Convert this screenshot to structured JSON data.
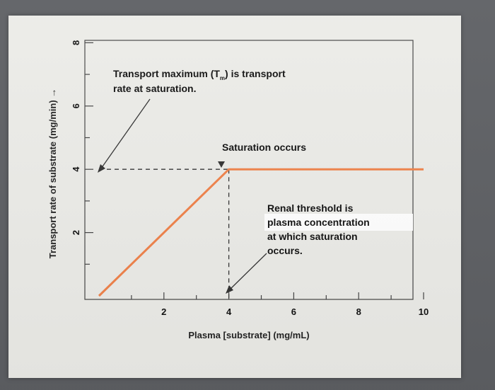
{
  "chart_data": {
    "type": "line",
    "title": "",
    "xlabel": "Plasma [substrate] (mg/mL)",
    "ylabel": "Transport rate of substrate (mg/min) →",
    "xlim": [
      0,
      10
    ],
    "ylim": [
      0,
      8
    ],
    "x_ticks": [
      "2",
      "4",
      "6",
      "8",
      "10"
    ],
    "y_ticks": [
      "2",
      "4",
      "6",
      "8"
    ],
    "series": [
      {
        "x": [
          0,
          4,
          10
        ],
        "y": [
          0,
          4,
          4
        ],
        "color": "#f0824a"
      }
    ],
    "reference_lines": {
      "y": 4,
      "x": 4,
      "style": "dashed"
    },
    "grid": false,
    "annotations": {
      "transport_max_line1_a": "Transport maximum (T",
      "transport_max_sub": "m",
      "transport_max_line1_b": ") is transport",
      "transport_max_line2": "rate at saturation.",
      "saturation": "Saturation occurs",
      "renal_threshold": [
        "Renal threshold is",
        "plasma concentration",
        "at which saturation",
        "occurs."
      ]
    }
  }
}
